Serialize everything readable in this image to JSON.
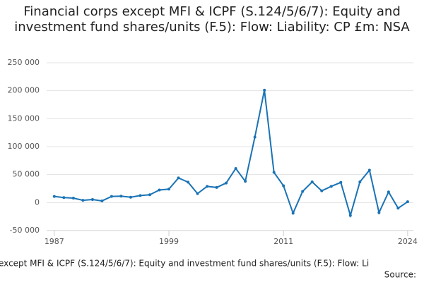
{
  "chart_data": {
    "type": "line",
    "title": "Financial corps except MFI & ICPF (S.124/5/6/7): Equity and investment fund shares/units (F.5): Flow: Liability: CP £m: NSA",
    "footer": "except MFI & ICPF (S.124/5/6/7): Equity and investment fund shares/units (F.5): Flow: Li",
    "source": "Source:",
    "x": [
      1987,
      1988,
      1989,
      1990,
      1991,
      1992,
      1993,
      1994,
      1995,
      1996,
      1997,
      1998,
      1999,
      2000,
      2001,
      2002,
      2003,
      2004,
      2005,
      2006,
      2007,
      2008,
      2009,
      2010,
      2011,
      2012,
      2013,
      2014,
      2015,
      2016,
      2017,
      2018,
      2019,
      2020,
      2021,
      2022,
      2023,
      2024
    ],
    "series": [
      {
        "color": "#1a73b5",
        "values": [
          11000,
          9000,
          8000,
          4000,
          5500,
          3000,
          11000,
          11500,
          9500,
          12500,
          14000,
          22500,
          24000,
          44000,
          36500,
          16000,
          29000,
          27000,
          35000,
          61000,
          38000,
          117000,
          201000,
          54000,
          30000,
          -19000,
          20000,
          37000,
          21000,
          29000,
          36000,
          -23000,
          37000,
          58000,
          -18000,
          19000,
          -10000,
          1500
        ]
      }
    ],
    "xlim": [
      1986.2,
      2024.6
    ],
    "xticks": [
      1987,
      1999,
      2011,
      2024
    ],
    "ylim": [
      -50000,
      250000
    ],
    "yticks": [
      {
        "value": -50000,
        "label": "-50 000"
      },
      {
        "value": 0,
        "label": "0"
      },
      {
        "value": 50000,
        "label": "50 000"
      },
      {
        "value": 100000,
        "label": "100 000"
      },
      {
        "value": 150000,
        "label": "150 000"
      },
      {
        "value": 200000,
        "label": "200 000"
      },
      {
        "value": 250000,
        "label": "250 000"
      }
    ],
    "grid": true
  }
}
